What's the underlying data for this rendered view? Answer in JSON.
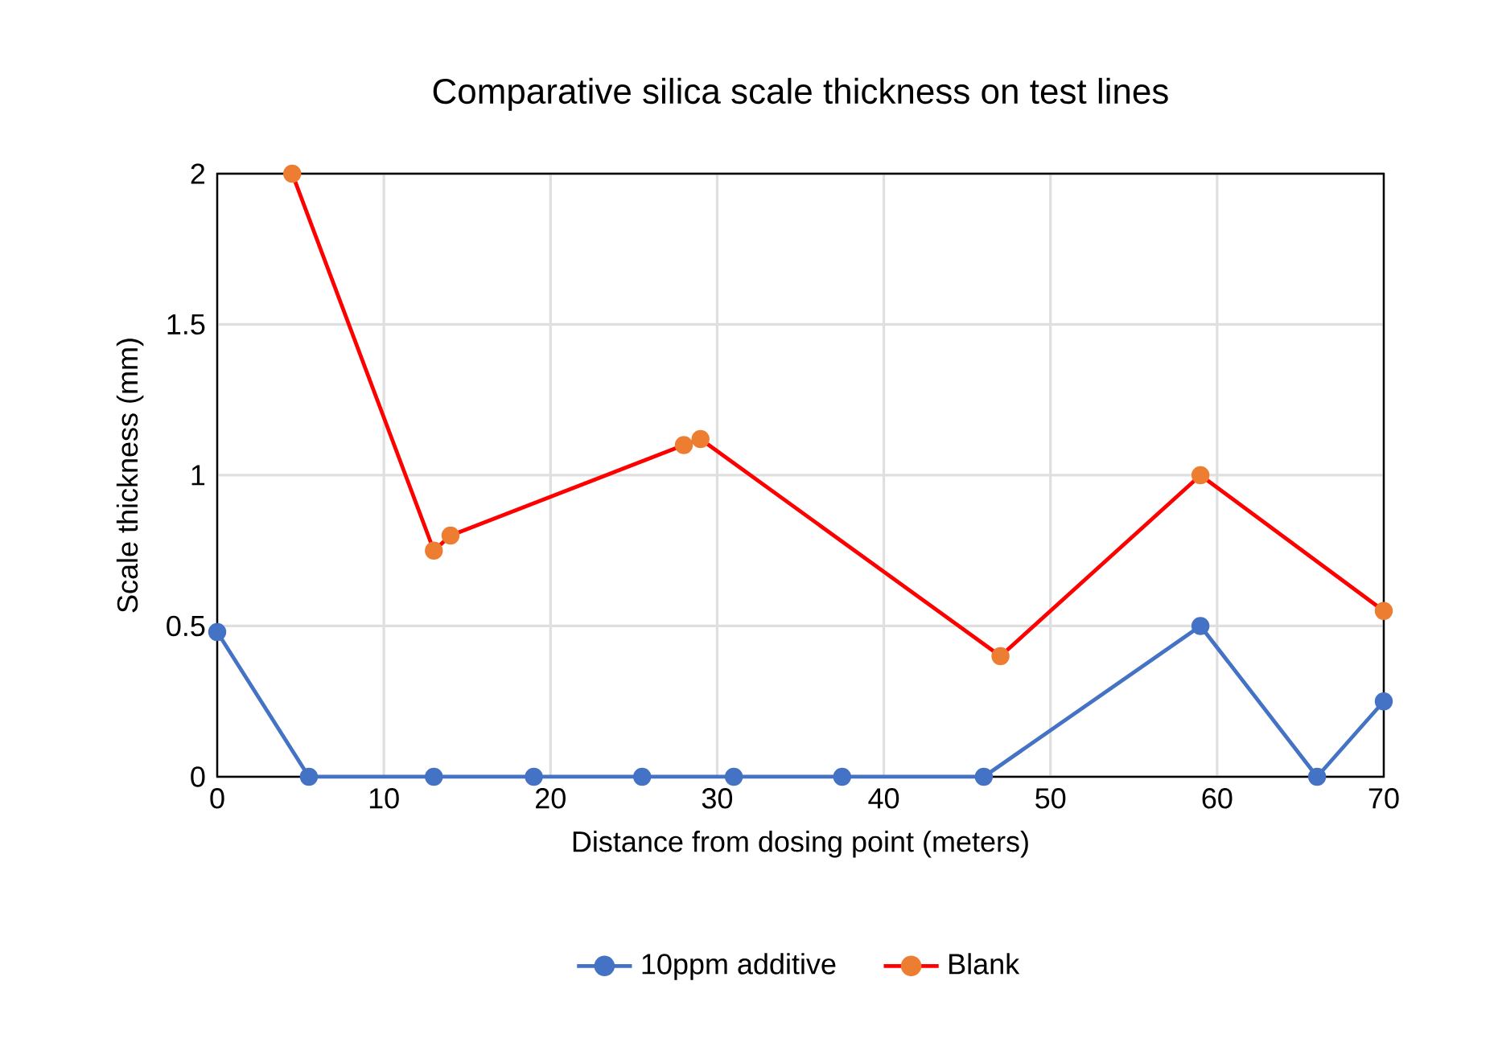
{
  "chart_data": {
    "type": "line",
    "title": "Comparative silica scale thickness on test lines",
    "xlabel": "Distance from dosing point (meters)",
    "ylabel": "Scale thickness (mm)",
    "series": [
      {
        "name": "10ppm additive",
        "color": "#4472c4",
        "x": [
          0,
          5.5,
          13,
          19,
          25.5,
          31,
          37.5,
          46,
          59,
          66,
          70
        ],
        "values": [
          0.48,
          0,
          0,
          0,
          0,
          0,
          0,
          0,
          0.5,
          0,
          0.25
        ]
      },
      {
        "name": "Blank",
        "color": "#ff0000",
        "colors": [
          "#ed7d31",
          "#ed7d31",
          "#ed7d31",
          "#ed7d31",
          "#ed7d31",
          "#ed7d31",
          "#ed7d31",
          "#ed7d31"
        ],
        "x": [
          4.5,
          13,
          14,
          28,
          29,
          47,
          59,
          70
        ],
        "values": [
          2,
          0.75,
          0.8,
          1.1,
          1.12,
          0.4,
          1.0,
          0.55
        ]
      }
    ],
    "xlim": [
      0,
      70
    ],
    "xticks": [
      0,
      10,
      20,
      30,
      40,
      50,
      60,
      70
    ],
    "ylim": [
      0,
      2
    ],
    "yticks": [
      0,
      0.5,
      1,
      1.5,
      2
    ],
    "grid": true,
    "legend": "bottom",
    "marker": "circle",
    "line_style": "solid"
  }
}
